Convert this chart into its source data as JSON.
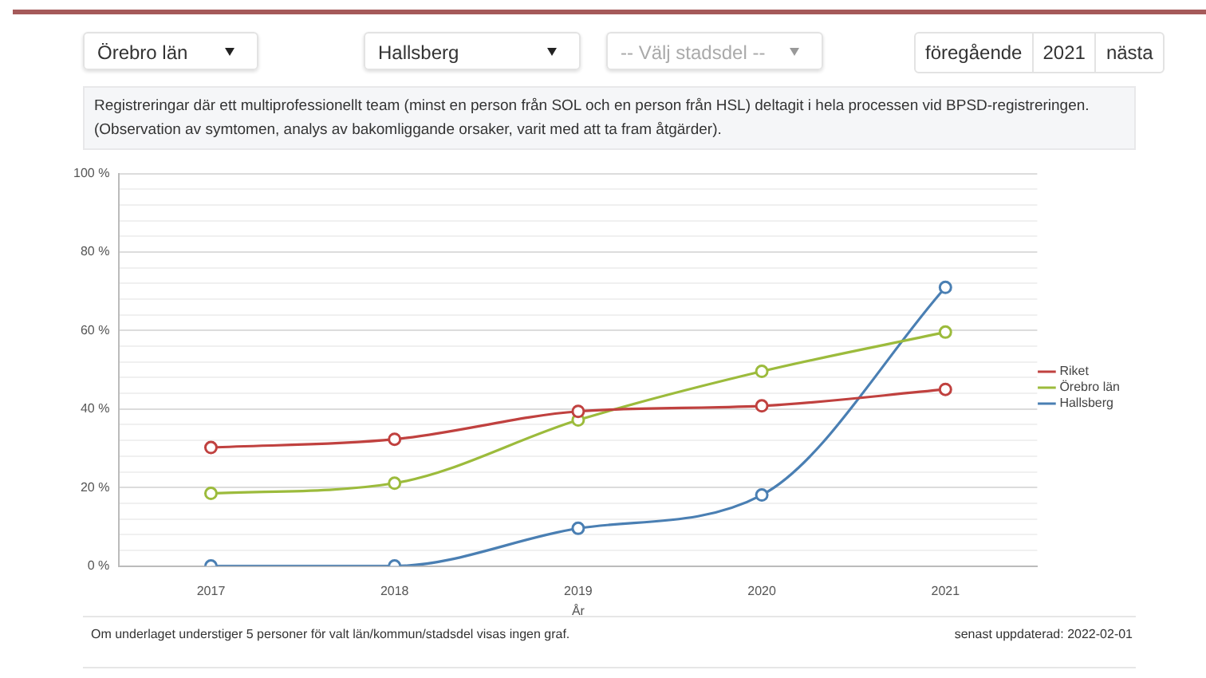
{
  "chart_data": {
    "type": "line",
    "title": "Registreringar där ett multiprofessionellt team (minst en person från SOL och en person från HSL) deltagit i hela processen vid BPSD-registreringen.",
    "subtitle": "(Observation av symtomen, analys av bakomliggande orsaker, varit med att ta fram åtgärder).",
    "xlabel": "År",
    "categories": [
      "2017",
      "2018",
      "2019",
      "2020",
      "2021"
    ],
    "series": [
      {
        "name": "Riket",
        "color": "#c0413f",
        "values": [
          30.2,
          32.3,
          39.4,
          40.8,
          45
        ]
      },
      {
        "name": "Örebro län",
        "color": "#9cbb3c",
        "values": [
          18.5,
          21.1,
          37.2,
          49.6,
          59.6
        ]
      },
      {
        "name": "Hallsberg",
        "color": "#4a7fb3",
        "values": [
          0,
          0,
          9.6,
          18.1,
          71
        ]
      }
    ],
    "ylim": [
      0,
      100
    ],
    "yticks": [
      {
        "value": 0,
        "label": "0 %"
      },
      {
        "value": 4,
        "label": null
      },
      {
        "value": 8,
        "label": null
      },
      {
        "value": 12,
        "label": null
      },
      {
        "value": 16,
        "label": null
      },
      {
        "value": 20,
        "label": "20 %"
      },
      {
        "value": 24,
        "label": null
      },
      {
        "value": 28,
        "label": null
      },
      {
        "value": 32,
        "label": null
      },
      {
        "value": 36,
        "label": null
      },
      {
        "value": 40,
        "label": "40 %"
      },
      {
        "value": 44,
        "label": null
      },
      {
        "value": 48,
        "label": null
      },
      {
        "value": 52,
        "label": null
      },
      {
        "value": 56,
        "label": null
      },
      {
        "value": 60,
        "label": "60 %"
      },
      {
        "value": 64,
        "label": null
      },
      {
        "value": 68,
        "label": null
      },
      {
        "value": 72,
        "label": null
      },
      {
        "value": 76,
        "label": null
      },
      {
        "value": 80,
        "label": "80 %"
      },
      {
        "value": 84,
        "label": null
      },
      {
        "value": 88,
        "label": null
      },
      {
        "value": 92,
        "label": null
      },
      {
        "value": 96,
        "label": null
      },
      {
        "value": 100,
        "label": "100 %"
      }
    ],
    "grid": "y",
    "legend": "right",
    "marker": "circle",
    "line_style": "solid",
    "annotations": [
      "Örebro län",
      "Hallsberg",
      "-- Välj stadsdel --",
      "föregående",
      "2021",
      "nästa",
      "Om underlaget understiger 5 personer för valt län/kommun/stadsdel visas ingen graf.",
      "senast uppdaterad: 2022-02-01"
    ]
  }
}
